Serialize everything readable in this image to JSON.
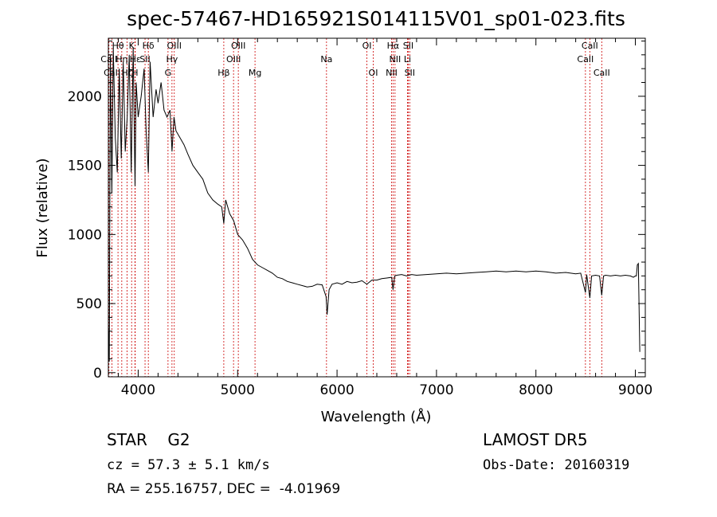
{
  "chart_data": {
    "type": "line",
    "title": "spec-57467-HD165921S014115V01_sp01-023.fits",
    "xlabel": "Wavelength (Å)",
    "ylabel": "Flux (relative)",
    "xlim": [
      3700,
      9100
    ],
    "ylim": [
      -30,
      2420
    ],
    "xticks": [
      4000,
      5000,
      6000,
      7000,
      8000,
      9000
    ],
    "yticks": [
      0,
      500,
      1000,
      1500,
      2000
    ],
    "grid": false,
    "series": [
      {
        "x": [
          3700,
          3710,
          3720,
          3735,
          3750,
          3770,
          3790,
          3810,
          3830,
          3850,
          3870,
          3890,
          3910,
          3930,
          3950,
          3968,
          3980,
          4000,
          4030,
          4060,
          4080,
          4102,
          4120,
          4150,
          4180,
          4200,
          4230,
          4260,
          4290,
          4320,
          4340,
          4360,
          4380,
          4420,
          4460,
          4500,
          4550,
          4600,
          4650,
          4700,
          4750,
          4800,
          4840,
          4861,
          4880,
          4920,
          4960,
          5000,
          5050,
          5100,
          5150,
          5200,
          5250,
          5300,
          5350,
          5400,
          5450,
          5500,
          5550,
          5600,
          5650,
          5700,
          5750,
          5800,
          5850,
          5890,
          5900,
          5920,
          5950,
          6000,
          6050,
          6100,
          6150,
          6200,
          6250,
          6300,
          6350,
          6400,
          6450,
          6500,
          6550,
          6563,
          6580,
          6600,
          6650,
          6700,
          6750,
          6800,
          6900,
          7000,
          7100,
          7200,
          7300,
          7400,
          7500,
          7600,
          7700,
          7800,
          7900,
          8000,
          8100,
          8200,
          8300,
          8400,
          8450,
          8498,
          8510,
          8542,
          8560,
          8600,
          8640,
          8662,
          8680,
          8700,
          8750,
          8800,
          8850,
          8900,
          8950,
          8980,
          9000,
          9010,
          9020,
          9030,
          9045
        ],
        "y": [
          350,
          80,
          2300,
          1300,
          2350,
          1700,
          1450,
          2200,
          1550,
          2250,
          1600,
          1850,
          2300,
          1450,
          2350,
          1350,
          2100,
          1850,
          2000,
          2200,
          1750,
          1450,
          2250,
          1850,
          2050,
          1950,
          2100,
          1900,
          1850,
          1900,
          1600,
          1850,
          1750,
          1700,
          1650,
          1580,
          1500,
          1450,
          1400,
          1300,
          1250,
          1220,
          1200,
          1080,
          1250,
          1150,
          1100,
          1000,
          960,
          900,
          820,
          780,
          760,
          740,
          720,
          690,
          680,
          660,
          650,
          640,
          630,
          620,
          625,
          640,
          635,
          550,
          420,
          600,
          640,
          650,
          640,
          660,
          650,
          655,
          665,
          640,
          670,
          670,
          680,
          685,
          690,
          600,
          700,
          705,
          710,
          700,
          710,
          705,
          710,
          715,
          720,
          715,
          720,
          725,
          730,
          735,
          730,
          735,
          730,
          735,
          730,
          720,
          725,
          715,
          720,
          580,
          710,
          540,
          700,
          705,
          700,
          560,
          700,
          705,
          700,
          705,
          700,
          705,
          700,
          690,
          700,
          700,
          780,
          790,
          150
        ]
      }
    ],
    "lines": [
      {
        "label": "CaII",
        "wavelength": 3706,
        "row": 2
      },
      {
        "label": "CaII",
        "wavelength": 3737,
        "row": 3
      },
      {
        "label": "Hθ",
        "wavelength": 3797,
        "row": 1
      },
      {
        "label": "Hη",
        "wavelength": 3835,
        "row": 2
      },
      {
        "label": "Hζ",
        "wavelength": 3889,
        "row": 3
      },
      {
        "label": "K",
        "wavelength": 3934,
        "row": 1
      },
      {
        "label": "H",
        "wavelength": 3968,
        "row": 3
      },
      {
        "label": "Hε",
        "wavelength": 3970,
        "row": 2
      },
      {
        "label": "SII",
        "wavelength": 4069,
        "row": 2
      },
      {
        "label": "Hδ",
        "wavelength": 4102,
        "row": 1
      },
      {
        "label": "G",
        "wavelength": 4300,
        "row": 3
      },
      {
        "label": "Hγ",
        "wavelength": 4340,
        "row": 2
      },
      {
        "label": "OIII",
        "wavelength": 4363,
        "row": 1
      },
      {
        "label": "Hβ",
        "wavelength": 4861,
        "row": 3
      },
      {
        "label": "OIII",
        "wavelength": 4959,
        "row": 2
      },
      {
        "label": "OIII",
        "wavelength": 5007,
        "row": 1
      },
      {
        "label": "Mg",
        "wavelength": 5175,
        "row": 3
      },
      {
        "label": "Na",
        "wavelength": 5894,
        "row": 2
      },
      {
        "label": "OI",
        "wavelength": 6300,
        "row": 1
      },
      {
        "label": "OI",
        "wavelength": 6364,
        "row": 3
      },
      {
        "label": "NII",
        "wavelength": 6548,
        "row": 3
      },
      {
        "label": "Hα",
        "wavelength": 6563,
        "row": 1
      },
      {
        "label": "NII",
        "wavelength": 6583,
        "row": 2
      },
      {
        "label": "Li",
        "wavelength": 6708,
        "row": 2
      },
      {
        "label": "SII",
        "wavelength": 6716,
        "row": 1
      },
      {
        "label": "SII",
        "wavelength": 6731,
        "row": 3
      },
      {
        "label": "CaII",
        "wavelength": 8498,
        "row": 2
      },
      {
        "label": "CaII",
        "wavelength": 8542,
        "row": 1
      },
      {
        "label": "CaII",
        "wavelength": 8662,
        "row": 3
      }
    ],
    "line_color": "#cc0000"
  },
  "info": {
    "object_type": "STAR    G2",
    "survey": "LAMOST DR5",
    "redshift": "cz = 57.3 ± 5.1 km/s",
    "obs_date": "Obs-Date: 20160319",
    "radec": "RA = 255.16757, DEC =  -4.01969"
  }
}
